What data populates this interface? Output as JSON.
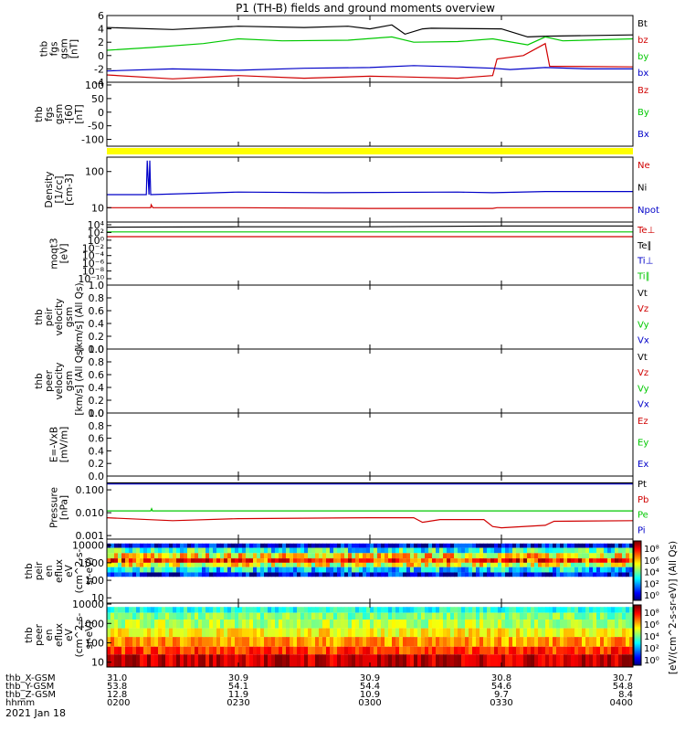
{
  "title": "P1  (TH-B) fields and ground moments overview",
  "date_label": "2021 Jan 18",
  "colors": {
    "black": "#000000",
    "red": "#d00000",
    "green": "#00c800",
    "blue": "#0000c8",
    "yellow": "#ffff00"
  },
  "chart_data": [
    {
      "type": "line",
      "ylabel_lines": [
        "thb",
        "fgs",
        "gsm",
        "[nT]"
      ],
      "ylim": [
        -4,
        6
      ],
      "yticks": [
        "6",
        "4",
        "2",
        "0",
        "-2",
        "-4"
      ],
      "series": [
        {
          "name": "Bt",
          "color": "#000000",
          "x": [
            0,
            15,
            30,
            45,
            55,
            60,
            65,
            68,
            72,
            74,
            90,
            96,
            100,
            120
          ],
          "y": [
            4.2,
            3.9,
            4.4,
            4.2,
            4.4,
            4.0,
            4.6,
            3.2,
            4.0,
            4.1,
            4.0,
            2.8,
            2.9,
            3.1
          ]
        },
        {
          "name": "bz",
          "color": "#d00000",
          "x": [
            0,
            15,
            30,
            45,
            60,
            68,
            80,
            88,
            89,
            95,
            100,
            101,
            120
          ],
          "y": [
            -2.9,
            -3.5,
            -3.0,
            -3.4,
            -3.1,
            -3.2,
            -3.4,
            -3.0,
            -0.5,
            0.0,
            1.8,
            -1.6,
            -1.7
          ]
        },
        {
          "name": "by",
          "color": "#00c800",
          "x": [
            0,
            10,
            22,
            30,
            40,
            55,
            65,
            70,
            80,
            88,
            96,
            100,
            104,
            120
          ],
          "y": [
            0.8,
            1.2,
            1.8,
            2.5,
            2.2,
            2.3,
            2.8,
            2.0,
            2.1,
            2.5,
            1.6,
            2.8,
            2.2,
            2.5
          ]
        },
        {
          "name": "bx",
          "color": "#0000c8",
          "x": [
            0,
            15,
            30,
            45,
            60,
            70,
            80,
            88,
            92,
            100,
            110,
            120
          ],
          "y": [
            -2.3,
            -2.0,
            -2.2,
            -1.9,
            -1.8,
            -1.5,
            -1.7,
            -1.9,
            -2.1,
            -1.8,
            -2.0,
            -2.0
          ]
        }
      ]
    },
    {
      "type": "line",
      "ylabel_lines": [
        "thb",
        "fgs",
        "gsm",
        "-[60",
        "[nT]"
      ],
      "ylim": [
        -125,
        110
      ],
      "yticks": [
        "100",
        "50",
        "0",
        "-50",
        "-100"
      ],
      "series": [
        {
          "name": "Bz",
          "color": "#d00000",
          "x": [],
          "y": []
        },
        {
          "name": "By",
          "color": "#00c800",
          "x": [],
          "y": []
        },
        {
          "name": "Bx",
          "color": "#0000c8",
          "x": [],
          "y": []
        }
      ]
    },
    {
      "type": "line",
      "ylabel_lines": [
        "Density",
        "[1/cc]",
        "[cm-3]"
      ],
      "log": true,
      "ylim": [
        4,
        250
      ],
      "yticks": [
        "100",
        "10"
      ],
      "series": [
        {
          "name": "Ne",
          "color": "#d00000",
          "x": [
            0,
            10,
            10.1,
            10.5,
            30,
            60,
            88,
            89,
            120
          ],
          "y": [
            10,
            10,
            12,
            10,
            10,
            9.5,
            9.5,
            10,
            10
          ]
        },
        {
          "name": "Ni",
          "color": "#000000",
          "x": [],
          "y": []
        },
        {
          "name": "Npot",
          "color": "#0000c8",
          "x": [
            0,
            9,
            9.2,
            9.6,
            9.8,
            10,
            30,
            50,
            80,
            88,
            100,
            120
          ],
          "y": [
            23,
            23,
            200,
            23,
            200,
            23,
            27,
            26,
            27,
            26,
            28,
            28
          ]
        }
      ]
    },
    {
      "type": "line",
      "ylabel_lines": [
        "moqt3",
        "[eV]"
      ],
      "log": true,
      "ylim_exp": [
        -11,
        5
      ],
      "yticks": [
        "10⁴",
        "10²",
        "10⁰",
        "10⁻²",
        "10⁻⁴",
        "10⁻⁶",
        "10⁻⁸",
        "10⁻¹⁰"
      ],
      "series": [
        {
          "name": "Te⊥",
          "color": "#d00000",
          "x": [
            0,
            120
          ],
          "y_exp": [
            1.3,
            1.3
          ]
        },
        {
          "name": "Te∥",
          "color": "#000000",
          "x": [
            0,
            30,
            60,
            90,
            120
          ],
          "y_exp": [
            3.7,
            3.8,
            3.8,
            4.0,
            4.0
          ]
        },
        {
          "name": "Ti⊥",
          "color": "#0000c8",
          "x": [],
          "y_exp": []
        },
        {
          "name": "Ti∥",
          "color": "#00c800",
          "x": [
            0,
            120
          ],
          "y_exp": [
            2.5,
            2.5
          ]
        }
      ]
    },
    {
      "type": "line",
      "ylabel_lines": [
        "thb",
        "peir",
        "velocity",
        "gsm",
        "[km/s] (All Qs)"
      ],
      "ylim": [
        0,
        1
      ],
      "yticks": [
        "1.0",
        "0.8",
        "0.6",
        "0.4",
        "0.2",
        "0.0"
      ],
      "series": [
        {
          "name": "Vt",
          "color": "#000000",
          "x": [],
          "y": []
        },
        {
          "name": "Vz",
          "color": "#d00000",
          "x": [],
          "y": []
        },
        {
          "name": "Vy",
          "color": "#00c800",
          "x": [],
          "y": []
        },
        {
          "name": "Vx",
          "color": "#0000c8",
          "x": [],
          "y": []
        }
      ]
    },
    {
      "type": "line",
      "ylabel_lines": [
        "thb",
        "peer",
        "velocity",
        "gsm",
        "[km/s] (All Qs)"
      ],
      "ylim": [
        0,
        1
      ],
      "yticks": [
        "1.0",
        "0.8",
        "0.6",
        "0.4",
        "0.2",
        "0.0"
      ],
      "series": [
        {
          "name": "Vt",
          "color": "#000000",
          "x": [],
          "y": []
        },
        {
          "name": "Vz",
          "color": "#d00000",
          "x": [],
          "y": []
        },
        {
          "name": "Vy",
          "color": "#00c800",
          "x": [],
          "y": []
        },
        {
          "name": "Vx",
          "color": "#0000c8",
          "x": [],
          "y": []
        }
      ]
    },
    {
      "type": "line",
      "ylabel_lines": [
        "E=-VxB",
        "[mV/m]"
      ],
      "ylim": [
        0,
        1
      ],
      "yticks": [
        "1.0",
        "0.8",
        "0.6",
        "0.4",
        "0.2",
        "0.0"
      ],
      "series": [
        {
          "name": "Ez",
          "color": "#d00000",
          "x": [],
          "y": []
        },
        {
          "name": "Ey",
          "color": "#00c800",
          "x": [],
          "y": []
        },
        {
          "name": "Ex",
          "color": "#0000c8",
          "x": [],
          "y": []
        }
      ]
    },
    {
      "type": "line",
      "ylabel_lines": [
        "Pressure",
        "[nPa]"
      ],
      "log": true,
      "ylim": [
        0.0007,
        0.4
      ],
      "yticks": [
        "0.100",
        "0.010",
        "0.001"
      ],
      "series": [
        {
          "name": "Pt",
          "color": "#000000",
          "x": [
            0,
            120
          ],
          "y": [
            0.2,
            0.2
          ]
        },
        {
          "name": "Pb",
          "color": "#d00000",
          "x": [
            0,
            15,
            30,
            60,
            70,
            72,
            76,
            86,
            88,
            90,
            100,
            102,
            120
          ],
          "y": [
            0.006,
            0.0045,
            0.0055,
            0.006,
            0.006,
            0.0038,
            0.005,
            0.005,
            0.0025,
            0.0022,
            0.0028,
            0.0042,
            0.0045
          ]
        },
        {
          "name": "Pe",
          "color": "#00c800",
          "x": [
            0,
            10,
            10.2,
            10.4,
            60,
            120
          ],
          "y": [
            0.012,
            0.012,
            0.015,
            0.012,
            0.012,
            0.012
          ]
        },
        {
          "name": "Pi",
          "color": "#0000c8",
          "x": [
            0,
            120
          ],
          "y": [
            0.18,
            0.18
          ]
        }
      ]
    },
    {
      "type": "heatmap",
      "ylabel_lines": [
        "thb",
        "peir",
        "en",
        "eflux",
        "eV",
        "(cm^2-s-",
        "sr-eV)"
      ],
      "yticks": [
        "10000",
        "1000",
        "100",
        "10"
      ],
      "ylim_exp": [
        0.7,
        4.35
      ],
      "band": [
        {
          "from_exp": 3.85,
          "to_exp": 4.1,
          "level": 0.1
        },
        {
          "from_exp": 3.55,
          "to_exp": 3.85,
          "level": 0.4
        },
        {
          "from_exp": 3.25,
          "to_exp": 3.55,
          "level": 0.65
        },
        {
          "from_exp": 3.0,
          "to_exp": 3.25,
          "level": 0.82
        },
        {
          "from_exp": 2.75,
          "to_exp": 3.0,
          "level": 0.6
        },
        {
          "from_exp": 2.45,
          "to_exp": 2.75,
          "level": 0.35
        },
        {
          "from_exp": 2.2,
          "to_exp": 2.45,
          "level": 0.12
        }
      ]
    },
    {
      "type": "heatmap",
      "ylabel_lines": [
        "thb",
        "peer",
        "en",
        "eflux",
        "eV",
        "(cm^2-s-",
        "sr-eV)"
      ],
      "yticks": [
        "10000",
        "1000",
        "100",
        "10"
      ],
      "ylim_exp": [
        0.75,
        4.05
      ],
      "band": [
        {
          "from_exp": 3.55,
          "to_exp": 3.85,
          "level": 0.4
        },
        {
          "from_exp": 3.2,
          "to_exp": 3.55,
          "level": 0.5
        },
        {
          "from_exp": 2.75,
          "to_exp": 3.2,
          "level": 0.55
        },
        {
          "from_exp": 2.3,
          "to_exp": 2.75,
          "level": 0.63
        },
        {
          "from_exp": 1.8,
          "to_exp": 2.3,
          "level": 0.72
        },
        {
          "from_exp": 1.4,
          "to_exp": 1.8,
          "level": 0.82
        },
        {
          "from_exp": 0.75,
          "to_exp": 1.4,
          "level": 0.93
        }
      ]
    }
  ],
  "colorbar": {
    "label": "[eV/(cm^2-s-sr-eV)] (All Qs)",
    "top_ticks": [
      "10⁸",
      "10⁶",
      "10⁴",
      "10²",
      "10⁰"
    ],
    "bottom_ticks": [
      "10⁸",
      "10⁶",
      "10⁴",
      "10²",
      "10⁰"
    ]
  },
  "x_axis": {
    "rows": [
      {
        "label": "thb_X-GSM",
        "values": [
          "31.0",
          "30.9",
          "30.9",
          "30.8",
          "30.7"
        ]
      },
      {
        "label": "thb_Y-GSM",
        "values": [
          "53.8",
          "54.1",
          "54.4",
          "54.6",
          "54.8"
        ]
      },
      {
        "label": "thb_Z-GSM",
        "values": [
          "12.8",
          "11.9",
          "10.9",
          "9.7",
          "8.4"
        ]
      },
      {
        "label": "hhmm",
        "values": [
          "0200",
          "0230",
          "0300",
          "0330",
          "0400"
        ]
      }
    ]
  }
}
